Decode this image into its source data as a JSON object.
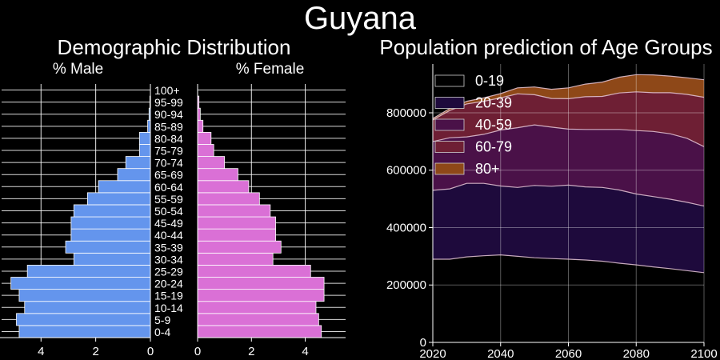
{
  "page": {
    "title": "Guyana"
  },
  "pyramid": {
    "title": "Demographic Distribution",
    "male_label": "% Male",
    "female_label": "% Female",
    "male_ticks": [
      "4",
      "2",
      "0"
    ],
    "female_ticks": [
      "0",
      "2",
      "4"
    ]
  },
  "prediction": {
    "title": "Population prediction of Age Groups"
  },
  "chart_data": [
    {
      "type": "bar",
      "orientation": "horizontal",
      "categories": [
        "0-4",
        "5-9",
        "10-14",
        "15-19",
        "20-24",
        "25-29",
        "30-34",
        "35-39",
        "40-44",
        "45-49",
        "50-54",
        "55-59",
        "60-64",
        "65-69",
        "70-74",
        "75-79",
        "80-84",
        "85-89",
        "90-94",
        "95-99",
        "100+"
      ],
      "series": [
        {
          "name": "% Male",
          "values": [
            4.8,
            4.9,
            4.6,
            4.8,
            5.1,
            4.5,
            2.8,
            3.1,
            2.9,
            2.9,
            2.8,
            2.3,
            1.9,
            1.2,
            0.9,
            0.4,
            0.4,
            0.1,
            0.05,
            0.02,
            0.0
          ]
        },
        {
          "name": "% Female",
          "values": [
            4.6,
            4.5,
            4.4,
            4.7,
            4.7,
            4.2,
            2.8,
            3.1,
            2.9,
            2.9,
            2.7,
            2.3,
            1.9,
            1.5,
            1.0,
            0.6,
            0.5,
            0.2,
            0.1,
            0.05,
            0.0
          ]
        }
      ],
      "xlim_male": [
        5.5,
        0
      ],
      "xlim_female": [
        0,
        5.5
      ],
      "grid": true,
      "colors": {
        "male": "#6495ed",
        "female": "#da70d6",
        "background": "#000000",
        "grid": "#ffffff"
      }
    },
    {
      "type": "area",
      "stacked": true,
      "x": [
        2020,
        2025,
        2030,
        2035,
        2040,
        2045,
        2050,
        2055,
        2060,
        2065,
        2070,
        2075,
        2080,
        2085,
        2090,
        2095,
        2100
      ],
      "series": [
        {
          "name": "0-19",
          "values": [
            290000,
            290000,
            298000,
            302000,
            305000,
            300000,
            295000,
            292000,
            290000,
            287000,
            283000,
            276000,
            270000,
            263000,
            257000,
            250000,
            243000
          ]
        },
        {
          "name": "20-39",
          "values": [
            240000,
            245000,
            256000,
            252000,
            240000,
            240000,
            252000,
            252000,
            258000,
            255000,
            257000,
            255000,
            247000,
            245000,
            242000,
            238000,
            232000
          ]
        },
        {
          "name": "40-59",
          "values": [
            170000,
            178000,
            162000,
            171000,
            195000,
            208000,
            211000,
            206000,
            195000,
            200000,
            202000,
            211000,
            221000,
            227000,
            228000,
            223000,
            207000
          ]
        },
        {
          "name": "60-79",
          "values": [
            75000,
            95000,
            115000,
            115000,
            112000,
            118000,
            105000,
            100000,
            106000,
            114000,
            115000,
            127000,
            135000,
            135000,
            143000,
            153000,
            172000
          ]
        },
        {
          "name": "80+",
          "values": [
            5000,
            7000,
            9000,
            12000,
            15000,
            21000,
            27000,
            32000,
            38000,
            44000,
            50000,
            55000,
            60000,
            62000,
            58000,
            58000,
            61000
          ]
        }
      ],
      "ylim": [
        0,
        970000
      ],
      "xlim": [
        2020,
        2100
      ],
      "x_ticks": [
        2020,
        2040,
        2060,
        2080,
        2100
      ],
      "y_ticks": [
        0,
        200000,
        400000,
        600000,
        800000
      ],
      "legend": "top-left",
      "grid": true,
      "colors": [
        "#000000",
        "#1e0a3c",
        "#4a1148",
        "#6e1f34",
        "#8e4818"
      ]
    }
  ]
}
